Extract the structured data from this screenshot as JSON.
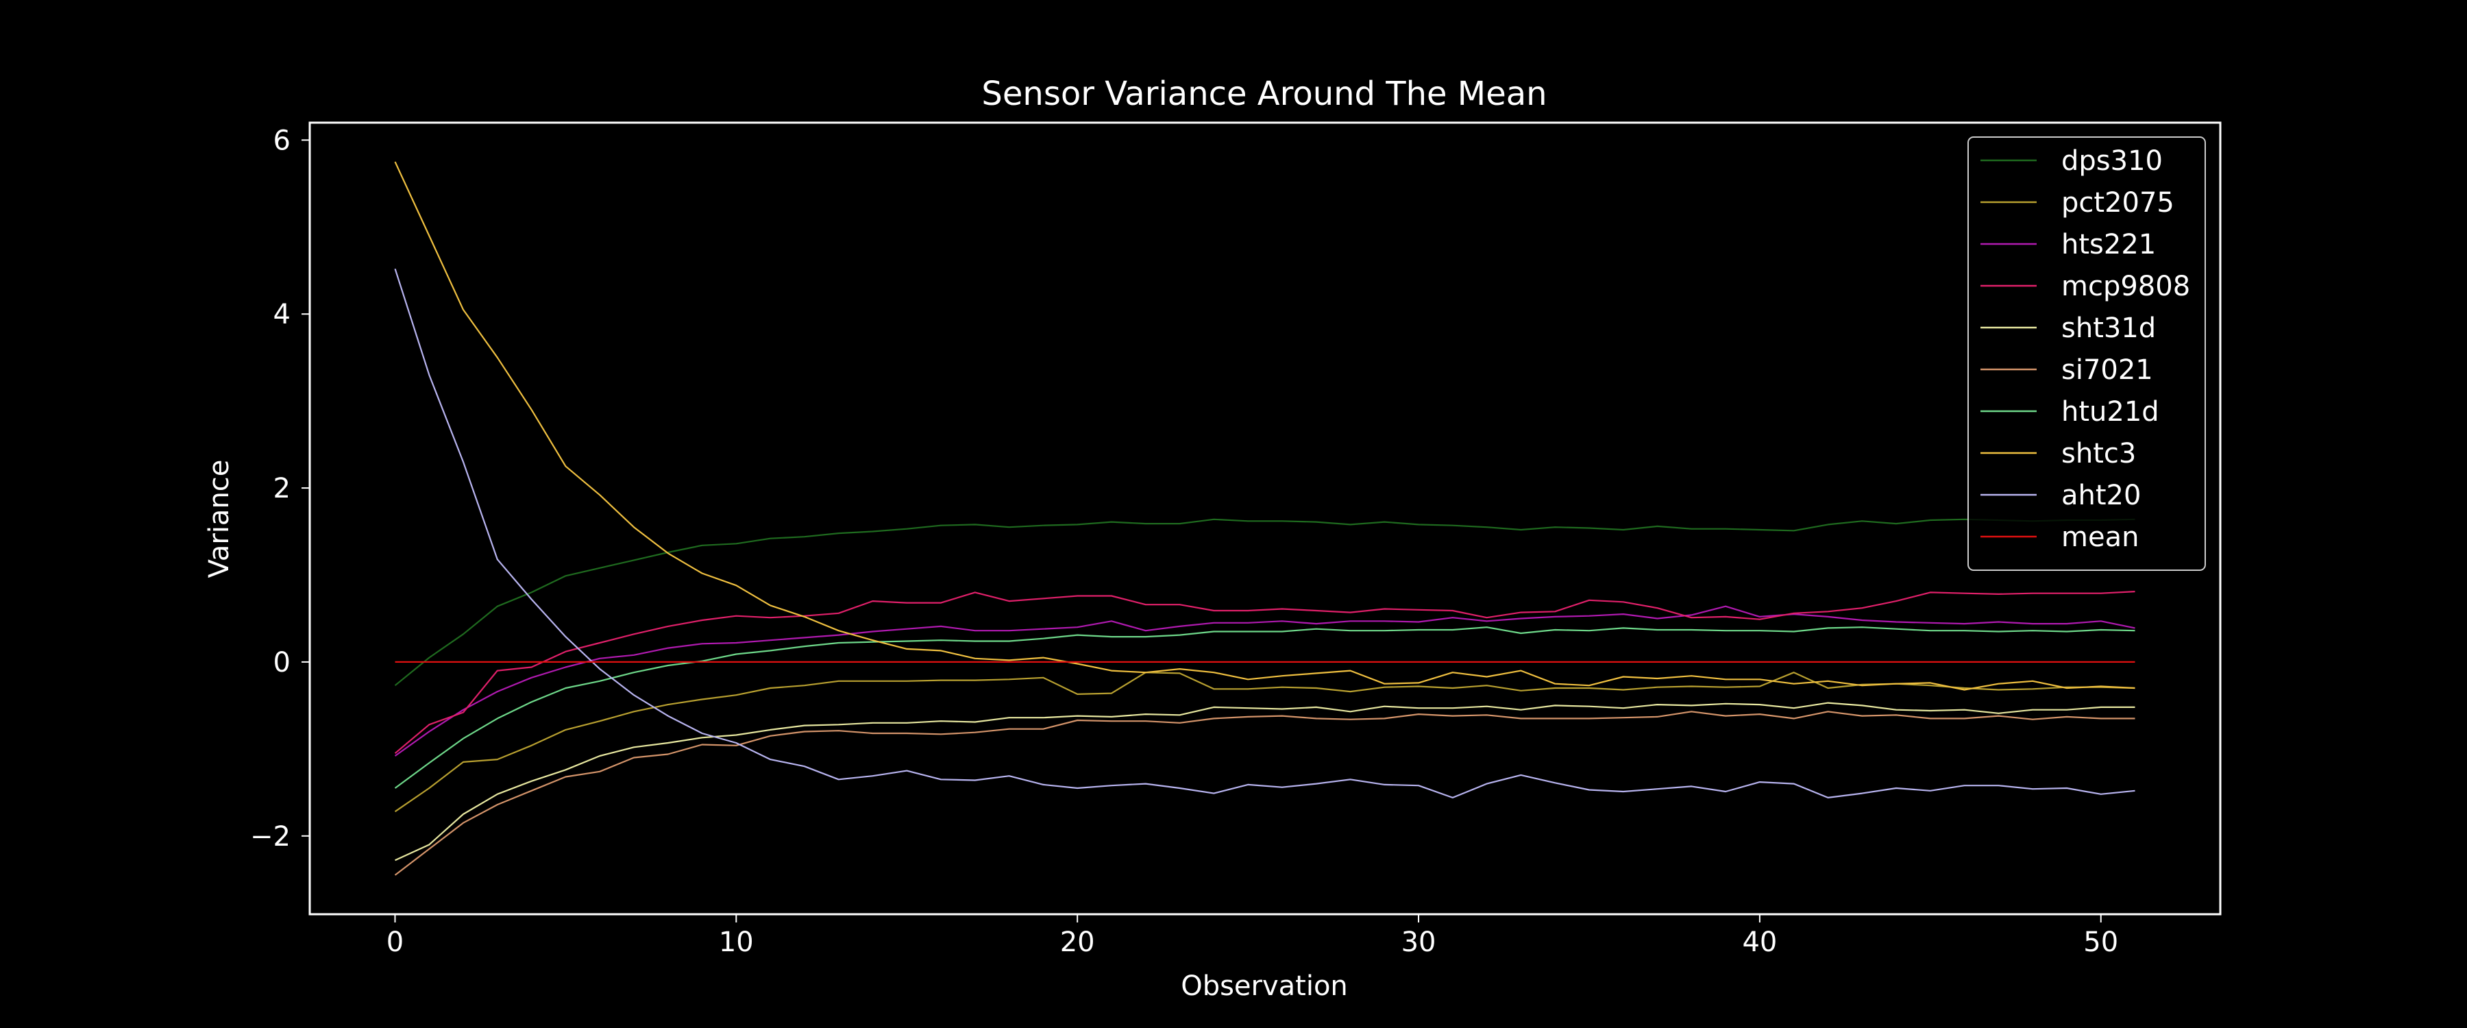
{
  "chart_data": {
    "type": "line",
    "title": "Sensor Variance Around The Mean",
    "xlabel": "Observation",
    "ylabel": "Variance",
    "xlim": [
      -2.5,
      53.5
    ],
    "ylim": [
      -2.9,
      6.2
    ],
    "xticks": [
      0,
      10,
      20,
      30,
      40,
      50
    ],
    "yticks": [
      -2,
      0,
      2,
      4,
      6
    ],
    "ytick_labels": [
      "−2",
      "0",
      "2",
      "4",
      "6"
    ],
    "grid": false,
    "legend_position": "top-right",
    "background": "#000000",
    "foreground": "#ffffff",
    "x": [
      0,
      1,
      2,
      3,
      4,
      5,
      6,
      7,
      8,
      9,
      10,
      11,
      12,
      13,
      14,
      15,
      16,
      17,
      18,
      19,
      20,
      21,
      22,
      23,
      24,
      25,
      26,
      27,
      28,
      29,
      30,
      31,
      32,
      33,
      34,
      35,
      36,
      37,
      38,
      39,
      40,
      41,
      42,
      43,
      44,
      45,
      46,
      47,
      48,
      49,
      50,
      51
    ],
    "series": [
      {
        "name": "dps310",
        "color": "#1f6b1f",
        "values": [
          -0.27,
          0.05,
          0.32,
          0.64,
          0.8,
          0.99,
          1.08,
          1.17,
          1.26,
          1.34,
          1.36,
          1.42,
          1.44,
          1.48,
          1.5,
          1.53,
          1.57,
          1.58,
          1.55,
          1.57,
          1.58,
          1.61,
          1.59,
          1.59,
          1.64,
          1.62,
          1.62,
          1.61,
          1.58,
          1.61,
          1.58,
          1.57,
          1.55,
          1.52,
          1.55,
          1.54,
          1.52,
          1.56,
          1.53,
          1.53,
          1.52,
          1.51,
          1.58,
          1.62,
          1.59,
          1.63,
          1.64,
          1.63,
          1.62,
          1.63,
          1.63,
          1.64
        ]
      },
      {
        "name": "pct2075",
        "color": "#b8a030",
        "values": [
          -1.72,
          -1.45,
          -1.15,
          -1.12,
          -0.96,
          -0.78,
          -0.68,
          -0.57,
          -0.49,
          -0.43,
          -0.38,
          -0.3,
          -0.27,
          -0.22,
          -0.22,
          -0.22,
          -0.21,
          -0.21,
          -0.2,
          -0.18,
          -0.37,
          -0.36,
          -0.12,
          -0.13,
          -0.31,
          -0.31,
          -0.29,
          -0.3,
          -0.34,
          -0.29,
          -0.28,
          -0.3,
          -0.27,
          -0.33,
          -0.3,
          -0.3,
          -0.32,
          -0.29,
          -0.28,
          -0.29,
          -0.28,
          -0.12,
          -0.3,
          -0.26,
          -0.25,
          -0.27,
          -0.3,
          -0.32,
          -0.31,
          -0.29,
          -0.29,
          -0.3
        ]
      },
      {
        "name": "hts221",
        "color": "#b01ab0",
        "values": [
          -1.08,
          -0.8,
          -0.55,
          -0.34,
          -0.18,
          -0.06,
          0.04,
          0.08,
          0.16,
          0.21,
          0.22,
          0.25,
          0.28,
          0.31,
          0.35,
          0.38,
          0.41,
          0.36,
          0.36,
          0.38,
          0.4,
          0.47,
          0.36,
          0.41,
          0.45,
          0.45,
          0.47,
          0.44,
          0.47,
          0.47,
          0.46,
          0.51,
          0.47,
          0.5,
          0.52,
          0.53,
          0.55,
          0.5,
          0.54,
          0.64,
          0.52,
          0.55,
          0.52,
          0.48,
          0.46,
          0.45,
          0.44,
          0.46,
          0.44,
          0.44,
          0.47,
          0.39
        ]
      },
      {
        "name": "mcp9808",
        "color": "#e0206a",
        "values": [
          -1.05,
          -0.72,
          -0.58,
          -0.1,
          -0.06,
          0.12,
          0.22,
          0.32,
          0.41,
          0.48,
          0.53,
          0.51,
          0.53,
          0.56,
          0.7,
          0.68,
          0.68,
          0.8,
          0.7,
          0.73,
          0.76,
          0.76,
          0.66,
          0.66,
          0.59,
          0.59,
          0.61,
          0.59,
          0.57,
          0.61,
          0.6,
          0.59,
          0.51,
          0.57,
          0.58,
          0.71,
          0.69,
          0.62,
          0.51,
          0.52,
          0.49,
          0.56,
          0.58,
          0.62,
          0.7,
          0.8,
          0.79,
          0.78,
          0.79,
          0.79,
          0.79,
          0.81
        ]
      },
      {
        "name": "sht31d",
        "color": "#e8e8a0",
        "values": [
          -2.28,
          -2.1,
          -1.75,
          -1.52,
          -1.37,
          -1.24,
          -1.08,
          -0.98,
          -0.93,
          -0.87,
          -0.84,
          -0.78,
          -0.73,
          -0.72,
          -0.7,
          -0.7,
          -0.68,
          -0.69,
          -0.64,
          -0.64,
          -0.62,
          -0.63,
          -0.6,
          -0.61,
          -0.52,
          -0.53,
          -0.54,
          -0.52,
          -0.57,
          -0.51,
          -0.53,
          -0.53,
          -0.51,
          -0.55,
          -0.5,
          -0.51,
          -0.53,
          -0.49,
          -0.5,
          -0.48,
          -0.49,
          -0.53,
          -0.47,
          -0.5,
          -0.55,
          -0.56,
          -0.55,
          -0.59,
          -0.55,
          -0.55,
          -0.52,
          -0.52
        ]
      },
      {
        "name": "si7021",
        "color": "#d4946a",
        "values": [
          -2.45,
          -2.15,
          -1.85,
          -1.64,
          -1.48,
          -1.32,
          -1.26,
          -1.1,
          -1.06,
          -0.95,
          -0.96,
          -0.85,
          -0.8,
          -0.79,
          -0.82,
          -0.82,
          -0.83,
          -0.81,
          -0.77,
          -0.77,
          -0.67,
          -0.68,
          -0.68,
          -0.7,
          -0.65,
          -0.63,
          -0.62,
          -0.65,
          -0.66,
          -0.65,
          -0.6,
          -0.62,
          -0.61,
          -0.65,
          -0.65,
          -0.65,
          -0.64,
          -0.63,
          -0.57,
          -0.62,
          -0.6,
          -0.65,
          -0.57,
          -0.62,
          -0.61,
          -0.65,
          -0.65,
          -0.62,
          -0.66,
          -0.63,
          -0.65,
          -0.65
        ]
      },
      {
        "name": "htu21d",
        "color": "#6ed88a",
        "values": [
          -1.45,
          -1.16,
          -0.88,
          -0.65,
          -0.46,
          -0.3,
          -0.22,
          -0.12,
          -0.04,
          0.01,
          0.09,
          0.13,
          0.18,
          0.22,
          0.23,
          0.24,
          0.25,
          0.24,
          0.24,
          0.27,
          0.31,
          0.29,
          0.29,
          0.31,
          0.35,
          0.35,
          0.35,
          0.38,
          0.36,
          0.36,
          0.37,
          0.37,
          0.4,
          0.33,
          0.37,
          0.36,
          0.39,
          0.37,
          0.37,
          0.36,
          0.36,
          0.35,
          0.39,
          0.4,
          0.38,
          0.36,
          0.36,
          0.35,
          0.36,
          0.35,
          0.37,
          0.36
        ]
      },
      {
        "name": "shtc3",
        "color": "#f0c040",
        "values": [
          5.75,
          4.9,
          4.05,
          3.5,
          2.9,
          2.25,
          1.92,
          1.55,
          1.25,
          1.02,
          0.88,
          0.65,
          0.52,
          0.36,
          0.25,
          0.15,
          0.13,
          0.04,
          0.02,
          0.05,
          -0.02,
          -0.1,
          -0.12,
          -0.08,
          -0.12,
          -0.2,
          -0.16,
          -0.13,
          -0.1,
          -0.25,
          -0.24,
          -0.12,
          -0.17,
          -0.1,
          -0.25,
          -0.27,
          -0.17,
          -0.19,
          -0.16,
          -0.2,
          -0.2,
          -0.25,
          -0.22,
          -0.27,
          -0.25,
          -0.24,
          -0.32,
          -0.25,
          -0.22,
          -0.3,
          -0.28,
          -0.3
        ]
      },
      {
        "name": "aht20",
        "color": "#b8b4f0",
        "values": [
          4.52,
          3.3,
          2.3,
          1.18,
          0.72,
          0.29,
          -0.08,
          -0.38,
          -0.62,
          -0.82,
          -0.93,
          -1.12,
          -1.2,
          -1.35,
          -1.31,
          -1.25,
          -1.35,
          -1.36,
          -1.31,
          -1.41,
          -1.45,
          -1.42,
          -1.4,
          -1.45,
          -1.51,
          -1.41,
          -1.44,
          -1.4,
          -1.35,
          -1.41,
          -1.42,
          -1.56,
          -1.4,
          -1.3,
          -1.39,
          -1.47,
          -1.49,
          -1.46,
          -1.43,
          -1.49,
          -1.38,
          -1.4,
          -1.56,
          -1.51,
          -1.45,
          -1.48,
          -1.42,
          -1.42,
          -1.46,
          -1.45,
          -1.52,
          -1.48
        ]
      },
      {
        "name": "mean",
        "color": "#e01010",
        "values": [
          0,
          0,
          0,
          0,
          0,
          0,
          0,
          0,
          0,
          0,
          0,
          0,
          0,
          0,
          0,
          0,
          0,
          0,
          0,
          0,
          0,
          0,
          0,
          0,
          0,
          0,
          0,
          0,
          0,
          0,
          0,
          0,
          0,
          0,
          0,
          0,
          0,
          0,
          0,
          0,
          0,
          0,
          0,
          0,
          0,
          0,
          0,
          0,
          0,
          0,
          0,
          0
        ]
      }
    ]
  }
}
